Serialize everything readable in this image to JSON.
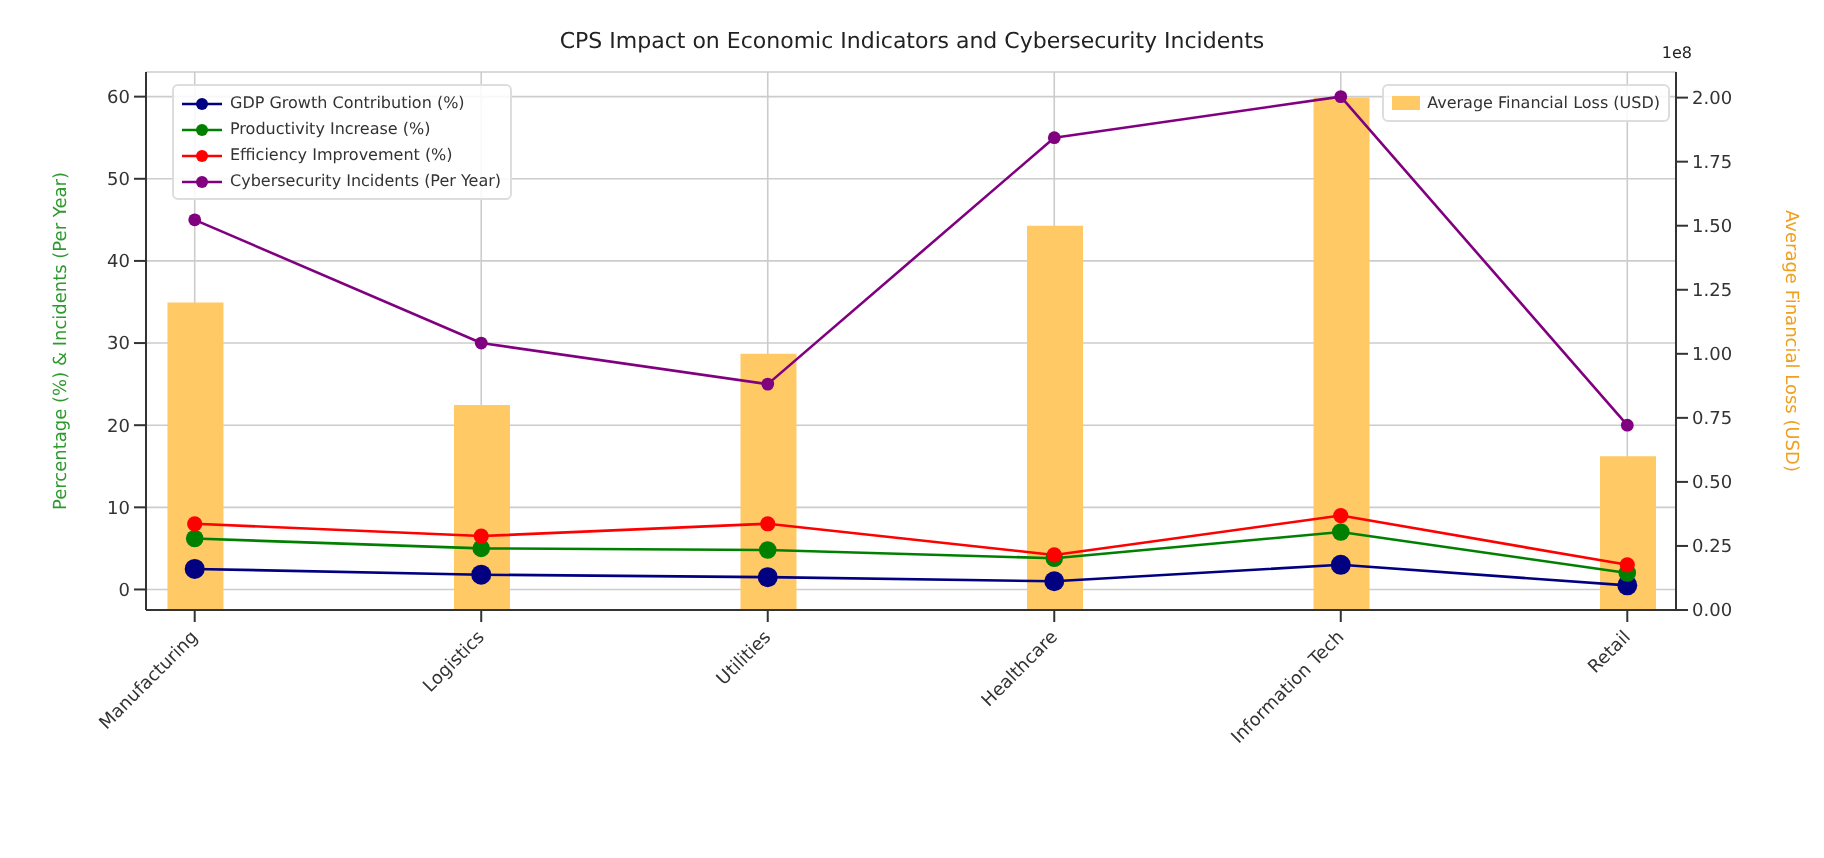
{
  "chart_data": {
    "type": "line",
    "title": "CPS Impact on Economic Indicators and Cybersecurity Incidents",
    "ylabel": "Percentage (%) & Incidents (Per Year)",
    "y2label": "Average Financial Loss (USD)",
    "categories": [
      "Manufacturing",
      "Logistics",
      "Utilities",
      "Healthcare",
      "Information Tech",
      "Retail"
    ],
    "series": [
      {
        "name": "Average Financial Loss (USD)",
        "type": "bar",
        "axis": "y2",
        "color": "#ffc966",
        "values": [
          1.2,
          0.8,
          1.0,
          1.5,
          2.0,
          0.6
        ]
      },
      {
        "name": "GDP Growth Contribution (%)",
        "color": "#000080",
        "values": [
          2.5,
          1.8,
          1.5,
          1.0,
          3.0,
          0.5
        ]
      },
      {
        "name": "Productivity Increase (%)",
        "color": "#008000",
        "values": [
          6.2,
          5.0,
          4.8,
          3.8,
          7.0,
          2.0
        ]
      },
      {
        "name": "Efficiency Improvement (%)",
        "color": "#ff0000",
        "values": [
          8.0,
          6.5,
          8.0,
          4.2,
          9.0,
          3.0
        ]
      },
      {
        "name": "Cybersecurity Incidents (Per Year)",
        "color": "#800080",
        "values": [
          45,
          30,
          25,
          55,
          60,
          20
        ]
      }
    ],
    "ylim": [
      -2.5,
      63
    ],
    "yticks": [
      0,
      10,
      20,
      30,
      40,
      50,
      60
    ],
    "y2lim": [
      0,
      2.1
    ],
    "y2ticks": [
      {
        "value": 0,
        "label": "0.00"
      },
      {
        "value": 0.25,
        "label": "0.25"
      },
      {
        "value": 0.5,
        "label": "0.50"
      },
      {
        "value": 0.75,
        "label": "0.75"
      },
      {
        "value": 1,
        "label": "1.00"
      },
      {
        "value": 1.25,
        "label": "1.25"
      },
      {
        "value": 1.5,
        "label": "1.50"
      },
      {
        "value": 1.75,
        "label": "1.75"
      },
      {
        "value": 2,
        "label": "2.00"
      }
    ],
    "annotations": [
      "1e8"
    ],
    "grid": true,
    "legend": "top left",
    "marker": "circle",
    "line_style": "solid"
  }
}
